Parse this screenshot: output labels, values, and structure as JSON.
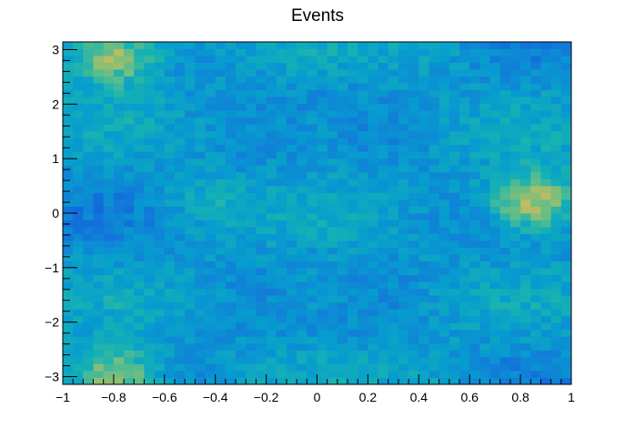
{
  "chart_data": {
    "type": "heatmap",
    "title": "Events",
    "xlabel": "",
    "ylabel": "",
    "xlim": [
      -1,
      1
    ],
    "ylim": [
      -3.1416,
      3.1416
    ],
    "x_ticks": [
      -1,
      -0.8,
      -0.6,
      -0.4,
      -0.2,
      0,
      0.2,
      0.4,
      0.6,
      0.8,
      1
    ],
    "x_tick_labels": [
      "−1",
      "−0.8",
      "−0.6",
      "−0.4",
      "−0.2",
      "0",
      "0.2",
      "0.4",
      "0.6",
      "0.8",
      "1"
    ],
    "y_ticks": [
      -3,
      -2,
      -1,
      0,
      1,
      2,
      3
    ],
    "y_tick_labels": [
      "−3",
      "−2",
      "−1",
      "0",
      "1",
      "2",
      "3"
    ],
    "bins": {
      "nx": 50,
      "ny": 50
    },
    "colormap": "parula",
    "z_range": [
      0,
      1
    ],
    "hotspots": [
      {
        "x": 0.85,
        "y": 0.2,
        "intensity": 0.95
      },
      {
        "x": -0.8,
        "y": 2.9,
        "intensity": 0.9
      },
      {
        "x": -0.8,
        "y": -3.0,
        "intensity": 0.9
      },
      {
        "x": -0.45,
        "y": 0.2,
        "intensity": 0.55
      },
      {
        "x": 0.0,
        "y": 1.5,
        "intensity": 0.55
      },
      {
        "x": 0.0,
        "y": -1.5,
        "intensity": 0.55
      },
      {
        "x": 0.5,
        "y": 3.0,
        "intensity": 0.5
      },
      {
        "x": 0.45,
        "y": -3.0,
        "intensity": 0.5
      }
    ],
    "grid": false,
    "legend": "none"
  },
  "colors": {
    "low": "#2a3fd6",
    "mid": "#2aa7c8",
    "high": "#f5f52a"
  }
}
